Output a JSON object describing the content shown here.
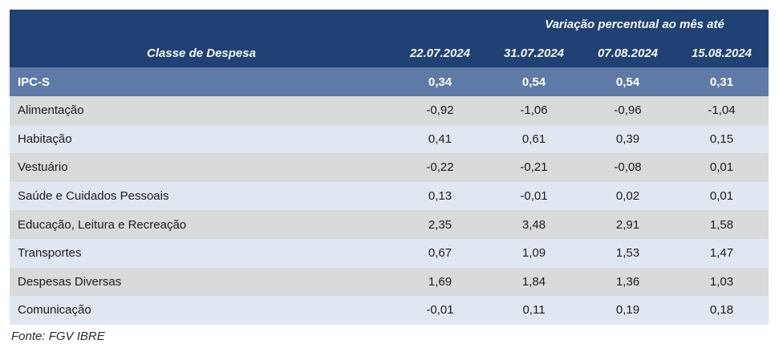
{
  "header": {
    "group_label": "Variação percentual ao mês até",
    "class_label": "Classe de Despesa",
    "dates": [
      "22.07.2024",
      "31.07.2024",
      "07.08.2024",
      "15.08.2024"
    ]
  },
  "table": {
    "rows": [
      {
        "label": "IPC-S",
        "values": [
          "0,34",
          "0,54",
          "0,54",
          "0,31"
        ]
      },
      {
        "label": "Alimentação",
        "values": [
          "-0,92",
          "-1,06",
          "-0,96",
          "-1,04"
        ]
      },
      {
        "label": "Habitação",
        "values": [
          "0,41",
          "0,61",
          "0,39",
          "0,15"
        ]
      },
      {
        "label": "Vestuário",
        "values": [
          "-0,22",
          "-0,21",
          "-0,08",
          "0,01"
        ]
      },
      {
        "label": "Saúde e Cuidados Pessoais",
        "values": [
          "0,13",
          "-0,01",
          "0,02",
          "0,01"
        ]
      },
      {
        "label": "Educação, Leitura e Recreação",
        "values": [
          "2,35",
          "3,48",
          "2,91",
          "1,58"
        ]
      },
      {
        "label": "Transportes",
        "values": [
          "0,67",
          "1,09",
          "1,53",
          "1,47"
        ]
      },
      {
        "label": "Despesas Diversas",
        "values": [
          "1,69",
          "1,84",
          "1,36",
          "1,03"
        ]
      },
      {
        "label": "Comunicação",
        "values": [
          "-0,01",
          "0,11",
          "0,19",
          "0,18"
        ]
      }
    ]
  },
  "footer": {
    "source": "Fonte: FGV IBRE"
  },
  "colors": {
    "header_navy": "#1f4173",
    "ipcs_row_blue": "#5f7aa6",
    "stripe_gray": "#d9dadc",
    "stripe_blue": "#e1e7f0",
    "header_text": "#f7f8fa",
    "body_text": "#1b1b1b"
  },
  "chart_data": {
    "type": "table",
    "title": "Variação percentual ao mês até",
    "columns": [
      "Classe de Despesa",
      "22.07.2024",
      "31.07.2024",
      "07.08.2024",
      "15.08.2024"
    ],
    "rows": [
      [
        "IPC-S",
        0.34,
        0.54,
        0.54,
        0.31
      ],
      [
        "Alimentação",
        -0.92,
        -1.06,
        -0.96,
        -1.04
      ],
      [
        "Habitação",
        0.41,
        0.61,
        0.39,
        0.15
      ],
      [
        "Vestuário",
        -0.22,
        -0.21,
        -0.08,
        0.01
      ],
      [
        "Saúde e Cuidados Pessoais",
        0.13,
        -0.01,
        0.02,
        0.01
      ],
      [
        "Educação, Leitura e Recreação",
        2.35,
        3.48,
        2.91,
        1.58
      ],
      [
        "Transportes",
        0.67,
        1.09,
        1.53,
        1.47
      ],
      [
        "Despesas Diversas",
        1.69,
        1.84,
        1.36,
        1.03
      ],
      [
        "Comunicação",
        -0.01,
        0.11,
        0.19,
        0.18
      ]
    ],
    "source": "Fonte: FGV IBRE",
    "layout": {
      "highlight_row": "IPC-S",
      "striped": true,
      "decimal_separator": ","
    }
  }
}
